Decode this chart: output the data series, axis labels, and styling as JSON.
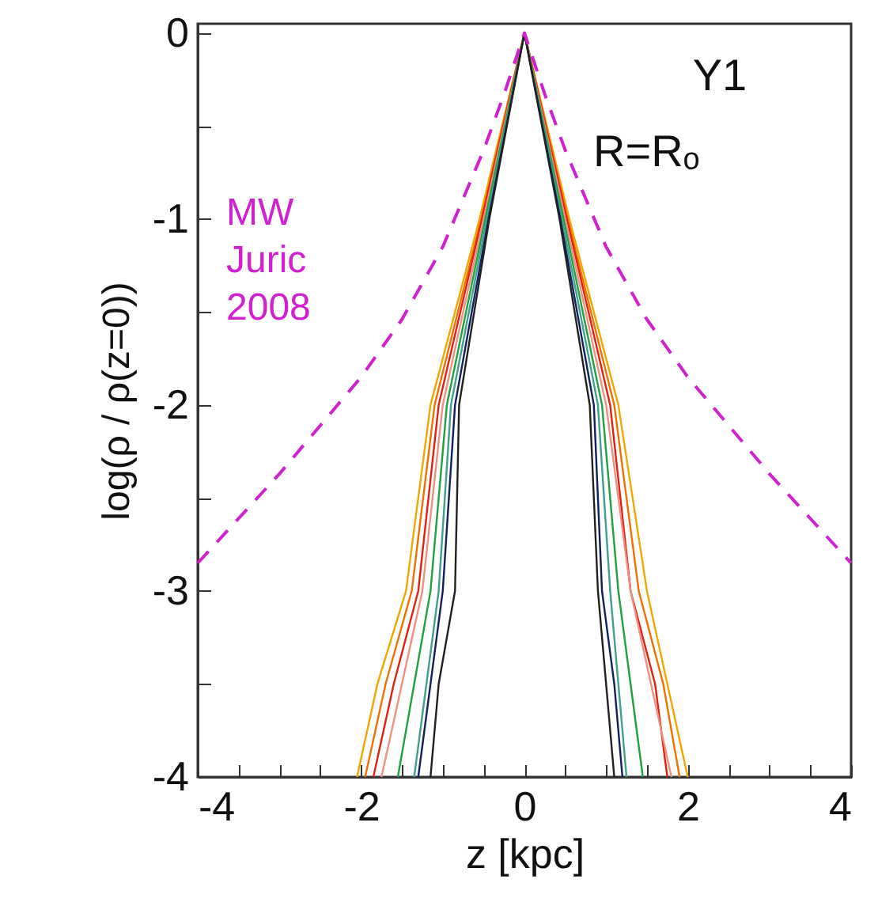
{
  "chart_data": {
    "type": "line",
    "xlabel": "z [kpc]",
    "ylabel": "log(ρ / ρ(z=0))",
    "annotations": [
      "Y1",
      "R=Rₒ"
    ],
    "xlim": [
      -4,
      4
    ],
    "ylim": [
      -4,
      0.05
    ],
    "xticks": [
      -4,
      {
        "value": -3.5,
        "label": null
      },
      {
        "value": -3,
        "label": null
      },
      {
        "value": -2.5,
        "label": null
      },
      -2,
      {
        "value": -1.5,
        "label": null
      },
      {
        "value": -1,
        "label": null
      },
      {
        "value": -0.5,
        "label": null
      },
      0,
      {
        "value": 0.5,
        "label": null
      },
      {
        "value": 1,
        "label": null
      },
      {
        "value": 1.5,
        "label": null
      },
      2,
      {
        "value": 2.5,
        "label": null
      },
      {
        "value": 3,
        "label": null
      },
      {
        "value": 3.5,
        "label": null
      },
      4
    ],
    "yticks": [
      -4,
      {
        "value": -3.5,
        "label": null
      },
      -3,
      {
        "value": -2.5,
        "label": null
      },
      -2,
      {
        "value": -1.5,
        "label": null
      },
      -1,
      {
        "value": -0.5,
        "label": null
      },
      0
    ],
    "grid": false,
    "series": [
      {
        "color": "#f0a800",
        "x": [
          -2.05,
          -1.8,
          -1.45,
          -1.15,
          -0.55,
          0,
          0.55,
          1.15,
          1.5,
          1.75,
          2.0
        ],
        "values": [
          -4,
          -3.5,
          -3,
          -2,
          -1,
          0,
          -1,
          -2,
          -3,
          -3.5,
          -4
        ]
      },
      {
        "color": "#f07000",
        "x": [
          -1.95,
          -1.7,
          -1.38,
          -1.1,
          -0.53,
          0,
          0.53,
          1.1,
          1.4,
          1.7,
          1.9
        ],
        "values": [
          -4,
          -3.5,
          -3,
          -2,
          -1,
          0,
          -1,
          -2,
          -3,
          -3.5,
          -4
        ]
      },
      {
        "color": "#e02010",
        "x": [
          -1.85,
          -1.6,
          -1.3,
          -1.05,
          -0.52,
          0,
          0.52,
          1.05,
          1.3,
          1.6,
          1.75
        ],
        "values": [
          -4,
          -3.5,
          -3,
          -2,
          -1,
          0,
          -1,
          -2,
          -3,
          -3.5,
          -4
        ]
      },
      {
        "color": "#f09080",
        "x": [
          -1.75,
          -1.5,
          -1.25,
          -1.0,
          -0.5,
          0,
          0.5,
          1.0,
          1.3,
          1.55,
          1.8
        ],
        "values": [
          -4,
          -3.5,
          -3,
          -2,
          -1,
          0,
          -1,
          -2,
          -3,
          -3.5,
          -4
        ]
      },
      {
        "color": "#20a040",
        "x": [
          -1.55,
          -1.35,
          -1.15,
          -0.95,
          -0.48,
          0,
          0.48,
          0.95,
          1.15,
          1.3,
          1.45
        ],
        "values": [
          -4,
          -3.5,
          -3,
          -2,
          -1,
          0,
          -1,
          -2,
          -3,
          -3.5,
          -4
        ]
      },
      {
        "color": "#40a090",
        "x": [
          -1.35,
          -1.2,
          -1.05,
          -0.9,
          -0.46,
          0,
          0.46,
          0.9,
          1.05,
          1.15,
          1.25
        ],
        "values": [
          -4,
          -3.5,
          -3,
          -2,
          -1,
          0,
          -1,
          -2,
          -3,
          -3.5,
          -4
        ]
      },
      {
        "color": "#102060",
        "x": [
          -1.3,
          -1.15,
          -1.0,
          -0.85,
          -0.44,
          0,
          0.44,
          0.85,
          0.95,
          1.1,
          1.2
        ],
        "values": [
          -4,
          -3.5,
          -3,
          -2,
          -1,
          0,
          -1,
          -2,
          -3,
          -3.5,
          -4
        ]
      },
      {
        "color": "#202020",
        "x": [
          -1.15,
          -1.05,
          -0.85,
          -0.8,
          -0.43,
          0,
          0.43,
          0.8,
          0.9,
          1.0,
          1.1
        ],
        "values": [
          -4,
          -3.5,
          -3,
          -2,
          -1,
          0,
          -1,
          -2,
          -3,
          -3.5,
          -4
        ]
      },
      {
        "name": "MW Juric 2008",
        "color": "#d020d0",
        "line_style": "dashed",
        "x": [
          -4,
          -3.5,
          -3,
          -2.5,
          -2,
          -1.5,
          -1,
          -0.5,
          -0.25,
          0,
          0.25,
          0.5,
          1,
          1.5,
          2,
          2.5,
          3,
          3.5,
          4
        ],
        "values": [
          -2.85,
          -2.61,
          -2.37,
          -2.11,
          -1.85,
          -1.54,
          -1.15,
          -0.63,
          -0.33,
          0,
          -0.33,
          -0.63,
          -1.15,
          -1.54,
          -1.85,
          -2.11,
          -2.37,
          -2.61,
          -2.85
        ]
      }
    ]
  }
}
